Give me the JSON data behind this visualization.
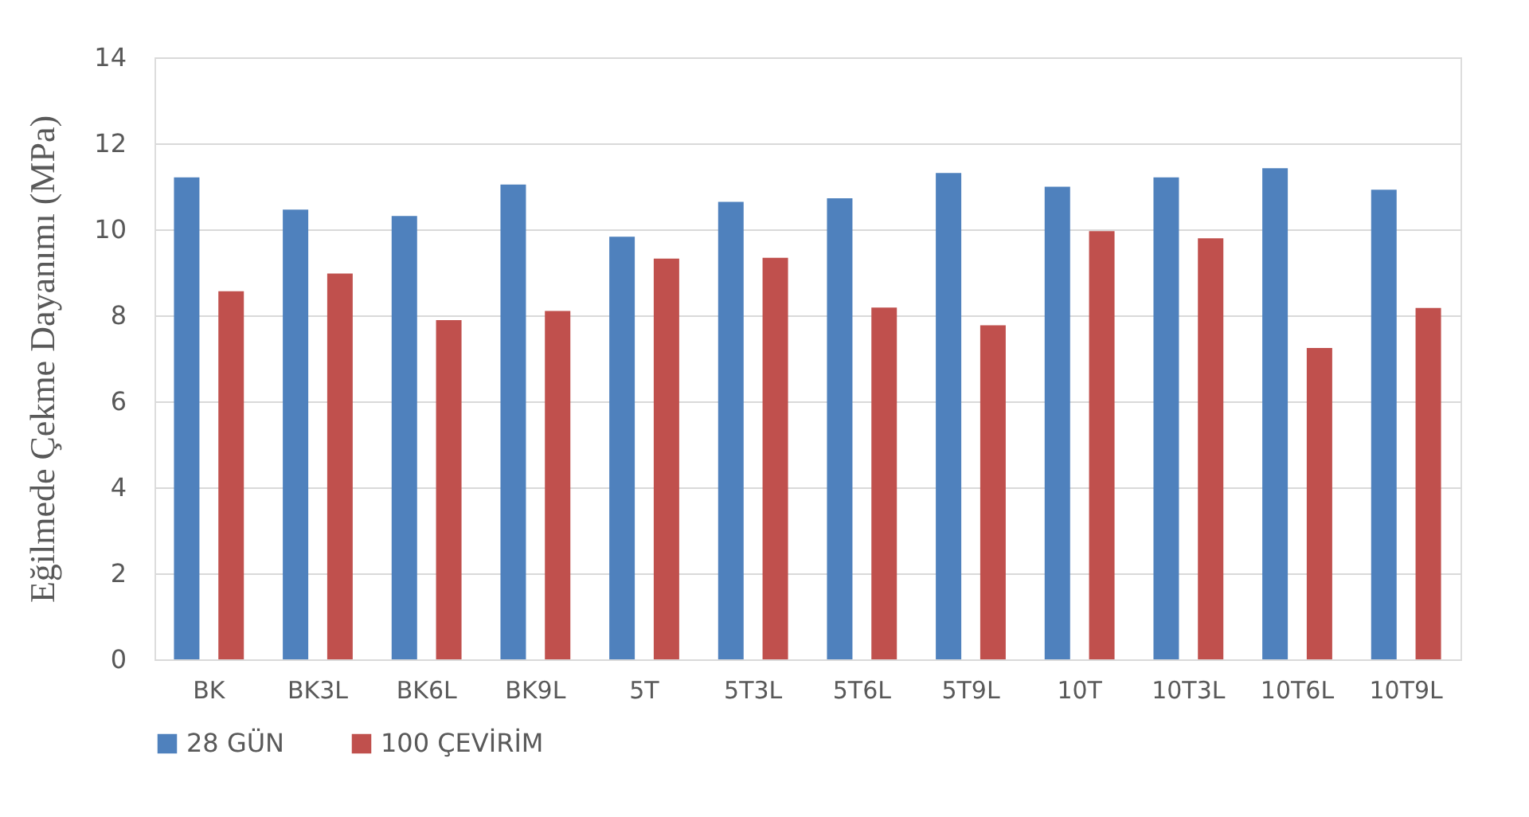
{
  "chart_data": {
    "type": "bar",
    "ylabel": "Eğilmede Çekme Dayanımı (MPa)",
    "categories": [
      "BK",
      "BK3L",
      "BK6L",
      "BK9L",
      "5T",
      "5T3L",
      "5T6L",
      "5T9L",
      "10T",
      "10T3L",
      "10T6L",
      "10T9L"
    ],
    "series": [
      {
        "name": "28 GÜN",
        "color": "#4f81bd",
        "values": [
          11.21,
          10.46,
          10.31,
          11.04,
          9.83,
          10.64,
          10.72,
          11.31,
          10.99,
          11.21,
          11.42,
          10.92
        ]
      },
      {
        "name": "100 ÇEVİRİM",
        "color": "#c0504d",
        "values": [
          8.56,
          8.97,
          7.89,
          8.1,
          9.32,
          9.34,
          8.18,
          7.77,
          9.96,
          9.79,
          7.24,
          8.17
        ]
      }
    ],
    "ylim": [
      0,
      14
    ],
    "yticks": [
      0,
      2,
      4,
      6,
      8,
      10,
      12,
      14
    ],
    "grid": "y",
    "legend": "bottom"
  }
}
